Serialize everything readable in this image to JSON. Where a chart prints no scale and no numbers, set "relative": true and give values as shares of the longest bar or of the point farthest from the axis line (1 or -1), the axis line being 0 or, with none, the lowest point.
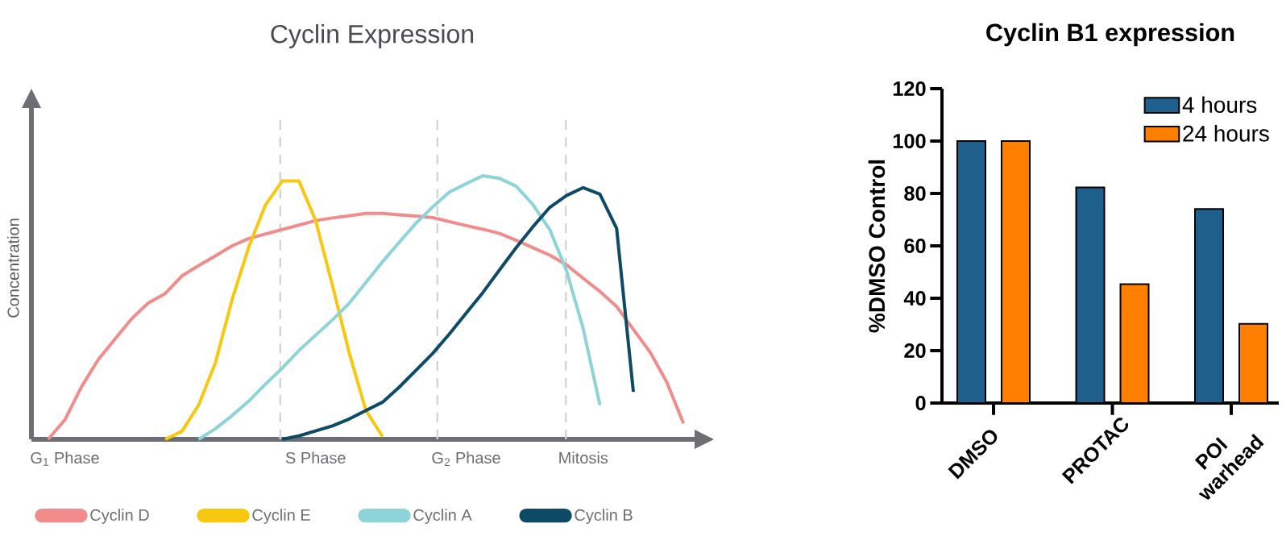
{
  "chart_data": [
    {
      "type": "line",
      "title": "Cyclin Expression",
      "ylabel": "Concentration",
      "relative": true,
      "categories": [
        null,
        "G$_{1}$ Phase",
        null,
        null,
        null,
        null,
        null,
        null,
        null,
        null,
        null,
        null,
        null,
        null,
        null,
        null,
        "S Phase",
        null,
        null,
        null,
        null,
        null,
        null,
        null,
        null,
        "G$_{2}$ Phase",
        null,
        null,
        null,
        null,
        null,
        null,
        "Mitosis",
        null,
        null,
        null,
        null,
        null,
        null,
        null
      ],
      "legend": "bottom",
      "series": [
        {
          "name": "Cyclin D",
          "color": "#f28b8b",
          "values": [
            0,
            0.074,
            0.2,
            0.303,
            0.381,
            0.458,
            0.518,
            0.553,
            0.62,
            0.659,
            0.696,
            0.734,
            0.762,
            0.779,
            0.796,
            0.813,
            0.83,
            0.84,
            0.848,
            0.857,
            0.857,
            0.852,
            0.847,
            0.841,
            0.826,
            0.811,
            0.797,
            0.781,
            0.755,
            0.727,
            0.699,
            0.662,
            0.611,
            0.561,
            0.504,
            0.417,
            0.331,
            0.217,
            0.06,
            null
          ]
        },
        {
          "name": "Cyclin E",
          "color": "#f7c80f",
          "values": [
            null,
            null,
            null,
            null,
            null,
            null,
            null,
            0,
            0.03,
            0.13,
            0.29,
            0.53,
            0.73,
            0.89,
            0.98,
            0.98,
            0.83,
            0.585,
            0.33,
            0.11,
            0.01,
            null,
            null,
            null,
            null,
            null,
            null,
            null,
            null,
            null,
            null,
            null,
            null,
            null,
            null,
            null,
            null,
            null,
            null,
            null
          ]
        },
        {
          "name": "Cyclin A",
          "color": "#8dd3d8",
          "values": [
            null,
            null,
            null,
            null,
            null,
            null,
            null,
            null,
            null,
            0,
            0.04,
            0.09,
            0.145,
            0.21,
            0.27,
            0.337,
            0.395,
            0.453,
            0.516,
            0.595,
            0.674,
            0.748,
            0.82,
            0.882,
            0.938,
            0.97,
            1.0,
            0.99,
            0.96,
            0.89,
            0.796,
            0.64,
            0.42,
            0.13,
            null,
            null,
            null,
            null,
            null,
            null
          ]
        },
        {
          "name": "Cyclin B",
          "color": "#0d4a66",
          "values": [
            null,
            null,
            null,
            null,
            null,
            null,
            null,
            null,
            null,
            null,
            null,
            null,
            null,
            null,
            0,
            0.013,
            0.032,
            0.051,
            0.077,
            0.109,
            0.141,
            0.198,
            0.262,
            0.326,
            0.4,
            0.479,
            0.557,
            0.643,
            0.728,
            0.807,
            0.88,
            0.925,
            0.955,
            0.93,
            0.8,
            0.18,
            null,
            null,
            null,
            null
          ]
        }
      ]
    },
    {
      "type": "bar",
      "title": "Cyclin B1 expression",
      "ylabel": "%DMSO Control",
      "categories": [
        "DMSO",
        "PROTAC",
        "POI warhead"
      ],
      "ylim": [
        0,
        120
      ],
      "yticks": [
        0,
        20,
        40,
        60,
        80,
        100,
        120
      ],
      "legend": "top right",
      "series": [
        {
          "name": "4 hours",
          "color": "#1f5f8b",
          "values": [
            100,
            82.3,
            74.1
          ]
        },
        {
          "name": "24 hours",
          "color": "#ff8000",
          "values": [
            100,
            45.4,
            30.2
          ]
        }
      ]
    }
  ]
}
